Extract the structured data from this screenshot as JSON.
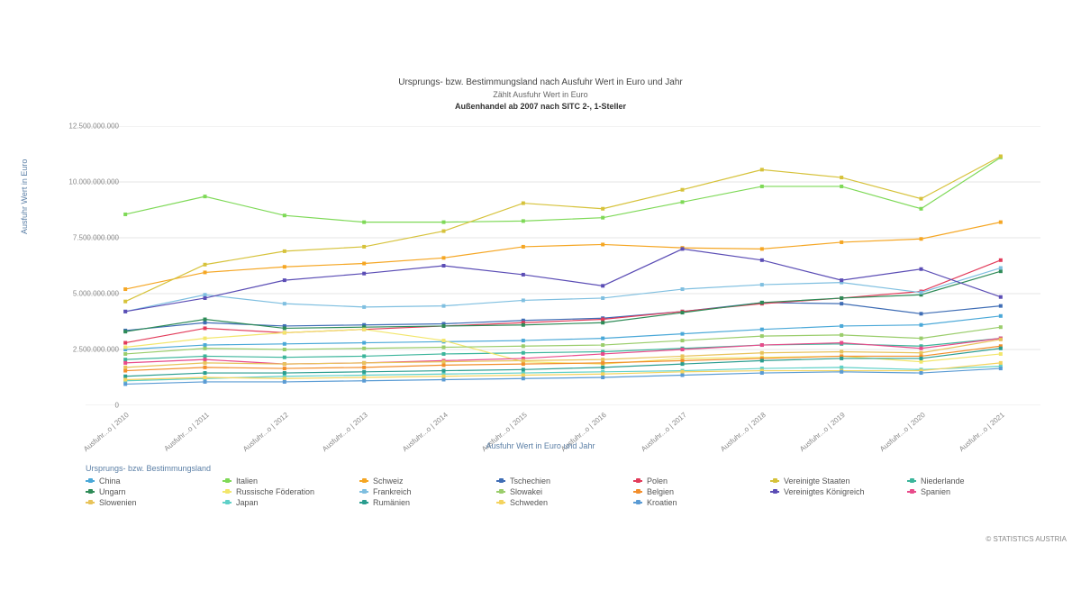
{
  "titles": {
    "main": "Ursprungs- bzw. Bestimmungsland nach Ausfuhr Wert in Euro und Jahr",
    "sub": "Zählt Ausfuhr Wert in Euro",
    "bold": "Außenhandel ab 2007 nach SITC 2-, 1-Steller"
  },
  "y_axis_label": "Ausfuhr Wert in Euro",
  "x_axis_label": "Ausfuhr Wert in Euro und Jahr",
  "legend_title": "Ursprungs- bzw. Bestimmungsland",
  "copyright": "© STATISTICS AUSTRIA",
  "chart": {
    "type": "line",
    "background_color": "#ffffff",
    "grid_color": "#e5e5e5",
    "marker_style": "square",
    "marker_size": 4,
    "line_width": 1.2,
    "title_fontsize": 10,
    "label_fontsize": 9,
    "tick_fontsize": 8,
    "label_color": "#5b7fa6",
    "x_categories": [
      "Ausfuhr...o | 2010",
      "Ausfuhr...o | 2011",
      "Ausfuhr...o | 2012",
      "Ausfuhr...o | 2013",
      "Ausfuhr...o | 2014",
      "Ausfuhr...o | 2015",
      "Ausfuhr...o | 2016",
      "Ausfuhr...o | 2017",
      "Ausfuhr...o | 2018",
      "Ausfuhr...o | 2019",
      "Ausfuhr...o | 2020",
      "Ausfuhr...o | 2021"
    ],
    "ylim": [
      0,
      12500000000
    ],
    "ytick_step": 2500000000,
    "ytick_labels": [
      "0",
      "2.500.000.000",
      "5.000.000.000",
      "7.500.000.000",
      "10.000.000.000",
      "12.500.000.000"
    ],
    "series": [
      {
        "name": "China",
        "color": "#4aa8d8",
        "values": [
          2.5,
          2.7,
          2.75,
          2.8,
          2.85,
          2.9,
          3.0,
          3.2,
          3.4,
          3.55,
          3.6,
          4.0
        ]
      },
      {
        "name": "Italien",
        "color": "#7ed957",
        "values": [
          8.55,
          9.35,
          8.5,
          8.2,
          8.2,
          8.25,
          8.4,
          9.1,
          9.8,
          9.8,
          8.8,
          11.1
        ]
      },
      {
        "name": "Schweiz",
        "color": "#f5a623",
        "values": [
          5.2,
          5.95,
          6.2,
          6.35,
          6.6,
          7.1,
          7.2,
          7.05,
          7.0,
          7.3,
          7.45,
          8.2
        ]
      },
      {
        "name": "Tschechien",
        "color": "#3f6db5",
        "values": [
          3.35,
          3.7,
          3.55,
          3.6,
          3.65,
          3.8,
          3.9,
          4.2,
          4.6,
          4.55,
          4.1,
          4.45
        ]
      },
      {
        "name": "Polen",
        "color": "#e23b5a",
        "values": [
          2.8,
          3.45,
          3.25,
          3.4,
          3.55,
          3.7,
          3.85,
          4.2,
          4.55,
          4.8,
          5.1,
          6.5
        ]
      },
      {
        "name": "Vereinigte Staaten",
        "color": "#d6c23a",
        "values": [
          4.65,
          6.3,
          6.9,
          7.1,
          7.8,
          9.05,
          8.8,
          9.65,
          10.55,
          10.2,
          9.25,
          11.15
        ]
      },
      {
        "name": "Niederlande",
        "color": "#3bb59b",
        "values": [
          2.05,
          2.2,
          2.15,
          2.2,
          2.3,
          2.35,
          2.4,
          2.55,
          2.7,
          2.75,
          2.65,
          3.0
        ]
      },
      {
        "name": "Ungarn",
        "color": "#2e8b57",
        "values": [
          3.3,
          3.85,
          3.45,
          3.5,
          3.55,
          3.6,
          3.7,
          4.15,
          4.6,
          4.8,
          4.95,
          6.0
        ]
      },
      {
        "name": "Russische Föderation",
        "color": "#f2e66b",
        "values": [
          2.6,
          3.0,
          3.25,
          3.4,
          2.9,
          1.95,
          1.85,
          2.1,
          2.15,
          2.2,
          1.95,
          2.3
        ]
      },
      {
        "name": "Frankreich",
        "color": "#7fbfe0",
        "values": [
          4.2,
          4.95,
          4.55,
          4.4,
          4.45,
          4.7,
          4.8,
          5.2,
          5.4,
          5.5,
          5.05,
          6.15
        ]
      },
      {
        "name": "Slowakei",
        "color": "#9acd6b",
        "values": [
          2.3,
          2.55,
          2.5,
          2.55,
          2.6,
          2.65,
          2.7,
          2.9,
          3.1,
          3.15,
          3.0,
          3.5
        ]
      },
      {
        "name": "Belgien",
        "color": "#f28e2b",
        "values": [
          1.55,
          1.7,
          1.65,
          1.7,
          1.8,
          1.85,
          1.9,
          2.0,
          2.1,
          2.2,
          2.2,
          2.65
        ]
      },
      {
        "name": "Vereinigtes Königreich",
        "color": "#5b4db5",
        "values": [
          4.2,
          4.8,
          5.6,
          5.9,
          6.25,
          5.85,
          5.35,
          7.0,
          6.5,
          5.6,
          6.1,
          4.85
        ]
      },
      {
        "name": "Spanien",
        "color": "#e84a8a",
        "values": [
          1.9,
          2.05,
          1.85,
          1.9,
          2.0,
          2.1,
          2.3,
          2.5,
          2.7,
          2.8,
          2.55,
          3.0
        ]
      },
      {
        "name": "Slowenien",
        "color": "#e8c35a",
        "values": [
          1.7,
          1.9,
          1.85,
          1.9,
          1.95,
          2.0,
          2.05,
          2.2,
          2.35,
          2.4,
          2.35,
          2.95
        ]
      },
      {
        "name": "Japan",
        "color": "#5fd0c8",
        "values": [
          1.1,
          1.2,
          1.3,
          1.35,
          1.4,
          1.45,
          1.5,
          1.55,
          1.65,
          1.7,
          1.6,
          1.75
        ]
      },
      {
        "name": "Rumänien",
        "color": "#2a9d8f",
        "values": [
          1.3,
          1.45,
          1.45,
          1.5,
          1.55,
          1.6,
          1.7,
          1.85,
          2.0,
          2.1,
          2.1,
          2.55
        ]
      },
      {
        "name": "Schweden",
        "color": "#f4d35e",
        "values": [
          1.15,
          1.25,
          1.2,
          1.25,
          1.3,
          1.35,
          1.4,
          1.5,
          1.55,
          1.55,
          1.55,
          1.9
        ]
      },
      {
        "name": "Kroatien",
        "color": "#5a9bd4",
        "values": [
          0.95,
          1.05,
          1.05,
          1.1,
          1.15,
          1.2,
          1.25,
          1.35,
          1.45,
          1.5,
          1.45,
          1.65
        ]
      }
    ],
    "series_value_unit": 1000000000
  }
}
